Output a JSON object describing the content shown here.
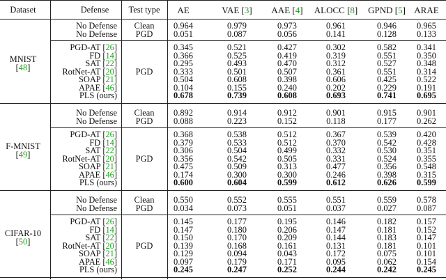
{
  "columns": {
    "dataset": "Dataset",
    "defense": "Defense",
    "test_type": "Test type",
    "methods": [
      {
        "name": "AE",
        "ref": ""
      },
      {
        "name": "VAE",
        "ref": "3"
      },
      {
        "name": "AAE",
        "ref": "4"
      },
      {
        "name": "ALOCC",
        "ref": "8"
      },
      {
        "name": "GPND",
        "ref": "5"
      },
      {
        "name": "ARAE",
        "ref": ""
      }
    ]
  },
  "blocks": [
    {
      "dataset": "MNIST",
      "dataset_ref": "48",
      "top_rows": [
        {
          "defense": "No Defense",
          "ref": "",
          "test": "Clean",
          "values": [
            "0.964",
            "0.979",
            "0.973",
            "0.961",
            "0.946",
            "0.965"
          ]
        },
        {
          "defense": "No Defense",
          "ref": "",
          "test": "PGD",
          "values": [
            "0.051",
            "0.087",
            "0.056",
            "0.141",
            "0.128",
            "0.133"
          ]
        }
      ],
      "pgd_label": "PGD",
      "rows": [
        {
          "defense": "PGD-AT",
          "ref": "26",
          "values": [
            "0.345",
            "0.521",
            "0.427",
            "0.302",
            "0.582",
            "0.341"
          ]
        },
        {
          "defense": "FD",
          "ref": "14",
          "values": [
            "0.366",
            "0.525",
            "0.419",
            "0.319",
            "0.551",
            "0.350"
          ]
        },
        {
          "defense": "SAT",
          "ref": "22",
          "values": [
            "0.295",
            "0.493",
            "0.470",
            "0.312",
            "0.527",
            "0.348"
          ]
        },
        {
          "defense": "RotNet-AT",
          "ref": "20",
          "values": [
            "0.333",
            "0.501",
            "0.507",
            "0.361",
            "0.551",
            "0.314"
          ]
        },
        {
          "defense": "SOAP",
          "ref": "21",
          "values": [
            "0.504",
            "0.608",
            "0.398",
            "0.606",
            "0.425",
            "0.522"
          ]
        },
        {
          "defense": "APAE",
          "ref": "46",
          "values": [
            "0.104",
            "0.155",
            "0.240",
            "0.202",
            "0.229",
            "0.191"
          ]
        },
        {
          "defense": "PLS (ours)",
          "ref": "",
          "values": [
            "0.678",
            "0.739",
            "0.608",
            "0.693",
            "0.741",
            "0.695"
          ],
          "bold": true
        }
      ]
    },
    {
      "dataset": "F-MNIST",
      "dataset_ref": "49",
      "top_rows": [
        {
          "defense": "No Defense",
          "ref": "",
          "test": "Clean",
          "values": [
            "0.892",
            "0.914",
            "0.912",
            "0.901",
            "0.915",
            "0.901"
          ]
        },
        {
          "defense": "No Defense",
          "ref": "",
          "test": "PGD",
          "values": [
            "0.088",
            "0.223",
            "0.152",
            "0.118",
            "0.177",
            "0.262"
          ]
        }
      ],
      "pgd_label": "PGD",
      "rows": [
        {
          "defense": "PGD-AT",
          "ref": "26",
          "values": [
            "0.368",
            "0.538",
            "0.512",
            "0.367",
            "0.539",
            "0.420"
          ]
        },
        {
          "defense": "FD",
          "ref": "14",
          "values": [
            "0.379",
            "0.533",
            "0.512",
            "0.370",
            "0.542",
            "0.428"
          ]
        },
        {
          "defense": "SAT",
          "ref": "22",
          "values": [
            "0.306",
            "0.504",
            "0.499",
            "0.332",
            "0.530",
            "0.351"
          ]
        },
        {
          "defense": "RotNet-AT",
          "ref": "20",
          "values": [
            "0.356",
            "0.542",
            "0.505",
            "0.331",
            "0.524",
            "0.355"
          ]
        },
        {
          "defense": "SOAP",
          "ref": "21",
          "values": [
            "0.475",
            "0.509",
            "0.313",
            "0.477",
            "0.356",
            "0.548"
          ]
        },
        {
          "defense": "APAE",
          "ref": "46",
          "values": [
            "0.174",
            "0.300",
            "0.300",
            "0.246",
            "0.398",
            "0.315"
          ]
        },
        {
          "defense": "PLS (ours)",
          "ref": "",
          "values": [
            "0.600",
            "0.604",
            "0.599",
            "0.612",
            "0.626",
            "0.599"
          ],
          "bold": true
        }
      ]
    },
    {
      "dataset": "CIFAR-10",
      "dataset_ref": "50",
      "top_rows": [
        {
          "defense": "No Defense",
          "ref": "",
          "test": "Clean",
          "values": [
            "0.550",
            "0.552",
            "0.555",
            "0.551",
            "0.559",
            "0.578"
          ]
        },
        {
          "defense": "No Defense",
          "ref": "",
          "test": "PGD",
          "values": [
            "0.034",
            "0.073",
            "0.051",
            "0.037",
            "0.027",
            "0.087"
          ]
        }
      ],
      "pgd_label": "PGD",
      "rows": [
        {
          "defense": "PGD-AT",
          "ref": "26",
          "values": [
            "0.145",
            "0.177",
            "0.195",
            "0.146",
            "0.182",
            "0.157"
          ]
        },
        {
          "defense": "FD",
          "ref": "14",
          "values": [
            "0.147",
            "0.180",
            "0.206",
            "0.147",
            "0.181",
            "0.152"
          ]
        },
        {
          "defense": "SAT",
          "ref": "22",
          "values": [
            "0.150",
            "0.170",
            "0.209",
            "0.144",
            "0.183",
            "0.147"
          ]
        },
        {
          "defense": "RotNet-AT",
          "ref": "20",
          "values": [
            "0.139",
            "0.168",
            "0.161",
            "0.131",
            "0.181",
            "0.101"
          ]
        },
        {
          "defense": "SOAP",
          "ref": "21",
          "values": [
            "0.129",
            "0.094",
            "0.043",
            "0.172",
            "0.075",
            "0.101"
          ]
        },
        {
          "defense": "APAE",
          "ref": "46",
          "values": [
            "0.097",
            "0.179",
            "0.171",
            "0.095",
            "0.062",
            "0.154"
          ]
        },
        {
          "defense": "PLS (ours)",
          "ref": "",
          "values": [
            "0.245",
            "0.247",
            "0.252",
            "0.244",
            "0.242",
            "0.245"
          ],
          "bold": true
        }
      ]
    }
  ]
}
